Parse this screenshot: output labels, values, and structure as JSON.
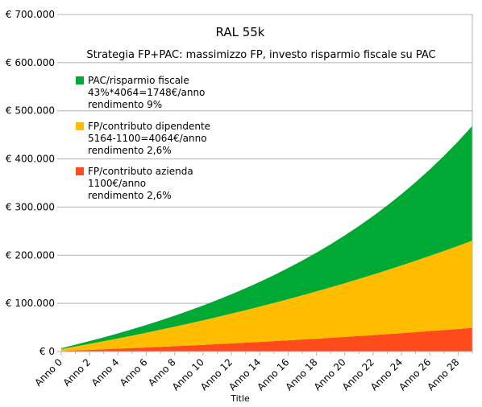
{
  "chart_data": {
    "type": "area",
    "stacked": true,
    "title": "RAL 55k",
    "subtitle": "Strategia FP+PAC: massimizzo FP, investo risparmio fiscale su PAC",
    "xlabel": "Title",
    "ylabel": "",
    "y_tick_labels": [
      "€ 0",
      "€ 100.000",
      "€ 200.000",
      "€ 300.000",
      "€ 400.000",
      "€ 500.000",
      "€ 600.000",
      "€ 700.000"
    ],
    "ylim": [
      0,
      700000
    ],
    "grid": true,
    "legend_position": "top-left",
    "categories": [
      "Anno 0",
      "Anno 1",
      "Anno 2",
      "Anno 3",
      "Anno 4",
      "Anno 5",
      "Anno 6",
      "Anno 7",
      "Anno 8",
      "Anno 9",
      "Anno 10",
      "Anno 11",
      "Anno 12",
      "Anno 13",
      "Anno 14",
      "Anno 15",
      "Anno 16",
      "Anno 17",
      "Anno 18",
      "Anno 19",
      "Anno 20",
      "Anno 21",
      "Anno 22",
      "Anno 23",
      "Anno 24",
      "Anno 25",
      "Anno 26",
      "Anno 27",
      "Anno 28",
      "Anno 29"
    ],
    "x_tick_labels": [
      "Anno 0",
      "Anno 2",
      "Anno 4",
      "Anno 6",
      "Anno 8",
      "Anno 10",
      "Anno 12",
      "Anno 14",
      "Anno 16",
      "Anno 18",
      "Anno 20",
      "Anno 22",
      "Anno 24",
      "Anno 26",
      "Anno 28"
    ],
    "series": [
      {
        "name": "FP/contributo azienda",
        "legend_lines": [
          "FP/contributo azienda",
          "1100€/anno",
          "rendimento 2,6%"
        ],
        "color": "#ff4a1c",
        "values": [
          1100,
          2229,
          3387,
          4575,
          5794,
          7045,
          8328,
          9645,
          10996,
          12382,
          13804,
          15263,
          16760,
          18296,
          19872,
          21489,
          23148,
          24850,
          26596,
          28388,
          30226,
          32112,
          34047,
          36032,
          38069,
          40159,
          42303,
          44503,
          46760,
          49076
        ]
      },
      {
        "name": "FP/contributo dipendente",
        "legend_lines": [
          "FP/contributo dipendente",
          "5164-1100=4064€/anno",
          "rendimento 2,6%"
        ],
        "color": "#ffbd00",
        "values": [
          4064,
          8234,
          12512,
          16902,
          21406,
          26027,
          30768,
          35632,
          40623,
          45744,
          50998,
          56388,
          61918,
          67593,
          73415,
          79388,
          85516,
          91804,
          98255,
          104874,
          111665,
          118632,
          125780,
          133114,
          140639,
          148360,
          156282,
          164409,
          172748,
          181304
        ]
      },
      {
        "name": "PAC/risparmio fiscale",
        "legend_lines": [
          "PAC/risparmio fiscale",
          "43%*4064=1748€/anno",
          "rendimento 9%"
        ],
        "color": "#00a933",
        "values": [
          1748,
          3653,
          5730,
          7993,
          10460,
          13149,
          16080,
          19275,
          22757,
          26553,
          30690,
          35200,
          40116,
          45474,
          51314,
          57680,
          64620,
          72183,
          80428,
          89414,
          99209,
          109886,
          121524,
          134209,
          148036,
          163107,
          179534,
          197440,
          216958,
          238232
        ]
      }
    ]
  }
}
